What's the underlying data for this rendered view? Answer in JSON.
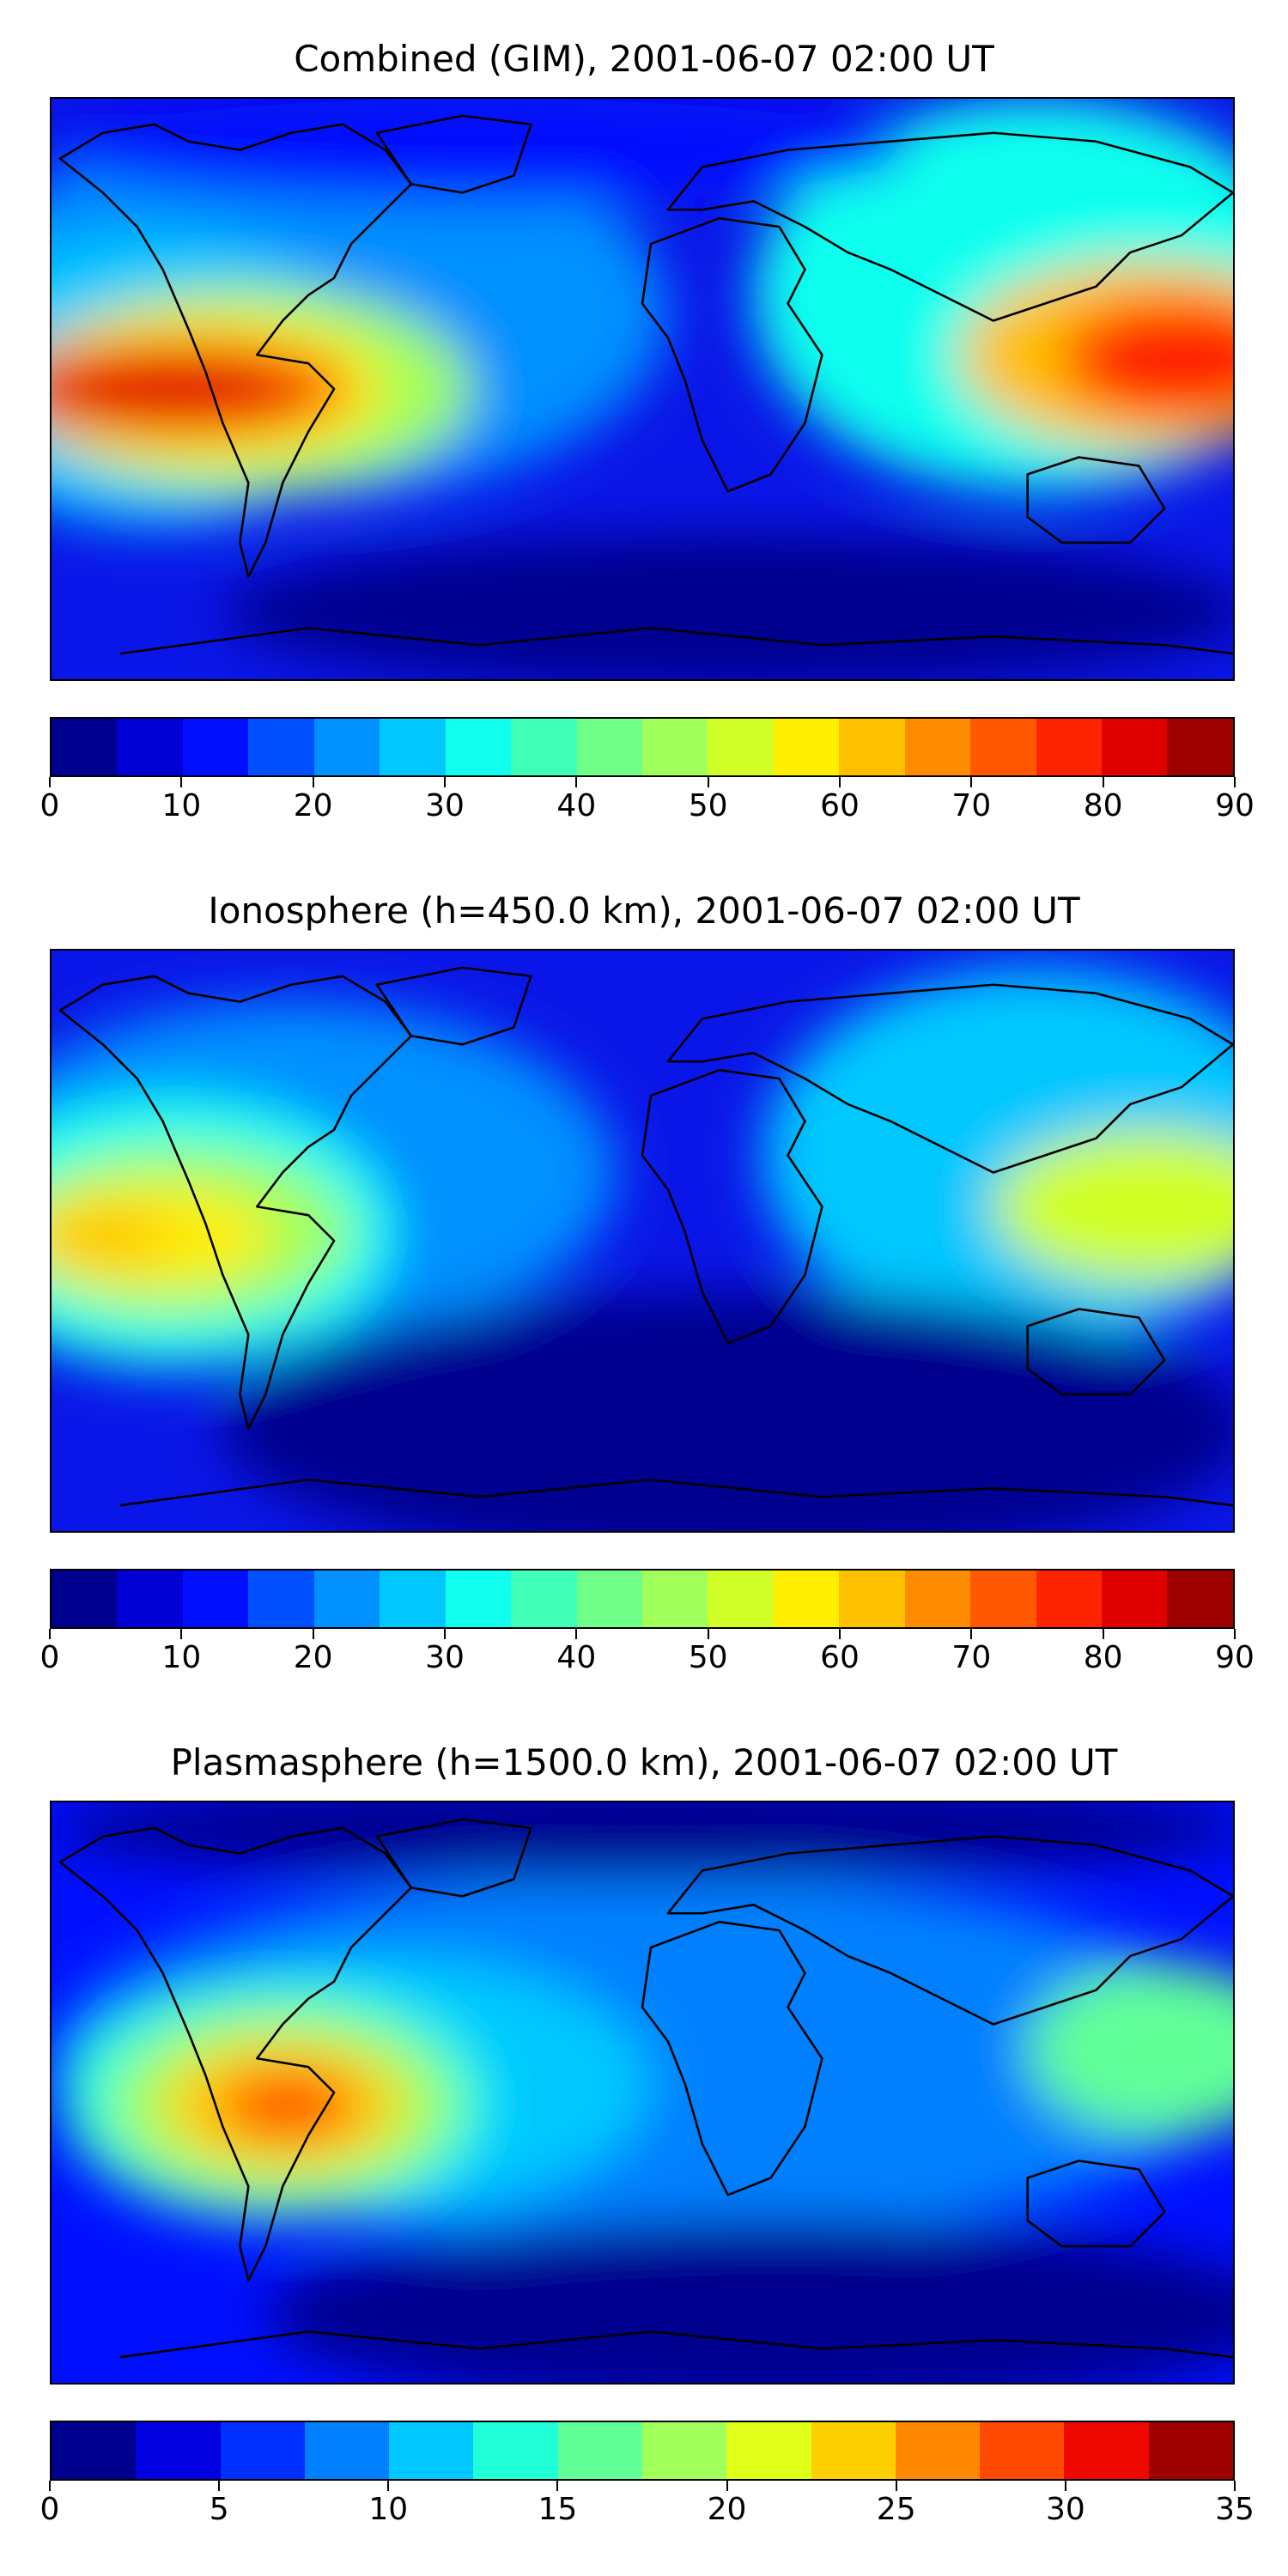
{
  "panels": [
    {
      "title": "Combined (GIM), 2001-06-07 02:00 UT",
      "colorbar": {
        "min": 0,
        "max": 90,
        "step": 5,
        "ticks": [
          "0",
          "10",
          "20",
          "30",
          "40",
          "50",
          "60",
          "70",
          "80",
          "90"
        ],
        "colors": [
          "#00008f",
          "#0000d4",
          "#0010ff",
          "#0050ff",
          "#0090ff",
          "#00c8ff",
          "#10ffee",
          "#40ffb8",
          "#70ff88",
          "#a0ff58",
          "#d0ff28",
          "#ffee00",
          "#ffc000",
          "#ff8c00",
          "#ff5800",
          "#ff2400",
          "#df0000",
          "#9f0000"
        ]
      }
    },
    {
      "title": "Ionosphere  (h=450.0 km), 2001-06-07 02:00 UT",
      "colorbar": {
        "min": 0,
        "max": 90,
        "step": 5,
        "ticks": [
          "0",
          "10",
          "20",
          "30",
          "40",
          "50",
          "60",
          "70",
          "80",
          "90"
        ],
        "colors": [
          "#00008f",
          "#0000d4",
          "#0010ff",
          "#0050ff",
          "#0090ff",
          "#00c8ff",
          "#10ffee",
          "#40ffb8",
          "#70ff88",
          "#a0ff58",
          "#d0ff28",
          "#ffee00",
          "#ffc000",
          "#ff8c00",
          "#ff5800",
          "#ff2400",
          "#df0000",
          "#9f0000"
        ]
      }
    },
    {
      "title": "Plasmasphere (h=1500.0 km), 2001-06-07 02:00 UT",
      "colorbar": {
        "min": 0,
        "max": 35,
        "step": 2.5,
        "ticks": [
          "0",
          "5",
          "10",
          "15",
          "20",
          "25",
          "30",
          "35"
        ],
        "colors": [
          "#00008f",
          "#0000e0",
          "#0030ff",
          "#0080ff",
          "#00c8ff",
          "#20ffd8",
          "#60ff98",
          "#a0ff58",
          "#e0ff18",
          "#ffd000",
          "#ff8800",
          "#ff4800",
          "#ef0800",
          "#9f0000"
        ]
      }
    }
  ]
}
